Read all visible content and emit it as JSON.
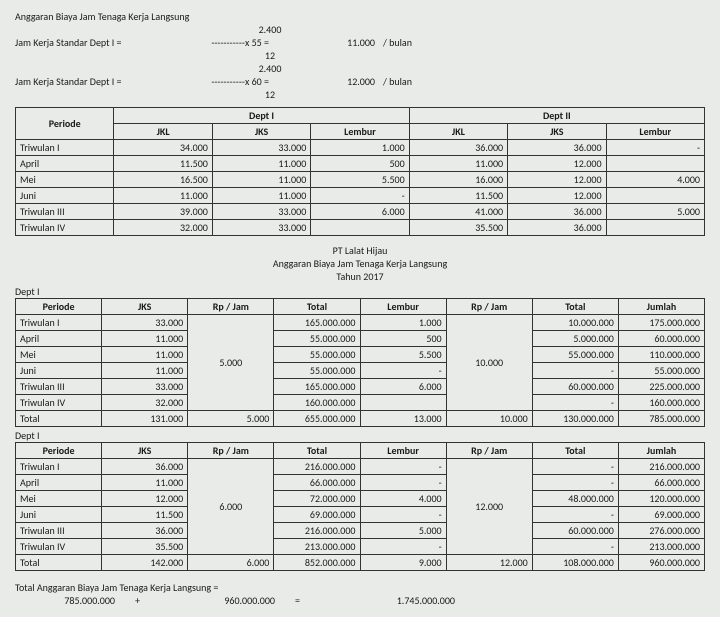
{
  "header": {
    "title": "Anggaran Biaya Jam Tenaga Kerja Langsung",
    "rows": [
      {
        "label": "Jam Kerja Standar Dept I  =",
        "num": "2.400",
        "den": "12",
        "mult": "x 55 =",
        "result": "11.000",
        "unit": "/ bulan"
      },
      {
        "label": "Jam Kerja Standar Dept I  =",
        "num": "2.400",
        "den": "12",
        "mult": "x 60 =",
        "result": "12.000",
        "unit": "/ bulan"
      }
    ],
    "dashes": "-----------"
  },
  "table1": {
    "periodeHeader": "Periode",
    "dept1": "Dept I",
    "dept2": "Dept II",
    "cols": [
      "JKL",
      "JKS",
      "Lembur",
      "JKL",
      "JKS",
      "Lembur"
    ],
    "rows": [
      {
        "p": "Triwulan I",
        "v": [
          "34.000",
          "33.000",
          "1.000",
          "36.000",
          "36.000",
          "-"
        ]
      },
      {
        "p": "April",
        "v": [
          "11.500",
          "11.000",
          "500",
          "11.000",
          "12.000",
          ""
        ]
      },
      {
        "p": "Mei",
        "v": [
          "16.500",
          "11.000",
          "5.500",
          "16.000",
          "12.000",
          "4.000"
        ]
      },
      {
        "p": "Juni",
        "v": [
          "11.000",
          "11.000",
          "-",
          "11.500",
          "12.000",
          ""
        ]
      },
      {
        "p": "Triwulan III",
        "v": [
          "39.000",
          "33.000",
          "6.000",
          "41.000",
          "36.000",
          "5.000"
        ]
      },
      {
        "p": "Triwulan IV",
        "v": [
          "32.000",
          "33.000",
          "",
          "35.500",
          "36.000",
          ""
        ]
      }
    ]
  },
  "midTitle": {
    "l1": "PT Lalat Hijau",
    "l2": "Anggaran Biaya Jam Tenaga Kerja Langsung",
    "l3": "Tahun 2017"
  },
  "table2": {
    "dept": "Dept I",
    "cols": [
      "Periode",
      "JKS",
      "Rp / Jam",
      "Total",
      "Lembur",
      "Rp / Jam",
      "Total",
      "Jumlah"
    ],
    "rate1": "5.000",
    "rate2": "10.000",
    "rows": [
      {
        "p": "Triwulan I",
        "jks": "33.000",
        "tot": "165.000.000",
        "lem": "1.000",
        "tot2": "10.000.000",
        "jml": "175.000.000"
      },
      {
        "p": "April",
        "jks": "11.000",
        "tot": "55.000.000",
        "lem": "500",
        "tot2": "5.000.000",
        "jml": "60.000.000"
      },
      {
        "p": "Mei",
        "jks": "11.000",
        "tot": "55.000.000",
        "lem": "5.500",
        "tot2": "55.000.000",
        "jml": "110.000.000"
      },
      {
        "p": "Juni",
        "jks": "11.000",
        "tot": "55.000.000",
        "lem": "-",
        "tot2": "-",
        "jml": "55.000.000"
      },
      {
        "p": "Triwulan III",
        "jks": "33.000",
        "tot": "165.000.000",
        "lem": "6.000",
        "tot2": "60.000.000",
        "jml": "225.000.000"
      },
      {
        "p": "Triwulan IV",
        "jks": "32.000",
        "tot": "160.000.000",
        "lem": "",
        "tot2": "-",
        "jml": "160.000.000"
      }
    ],
    "total": {
      "p": "Total",
      "jks": "131.000",
      "rate": "5.000",
      "tot": "655.000.000",
      "lem": "13.000",
      "rate2": "10.000",
      "tot2": "130.000.000",
      "jml": "785.000.000"
    }
  },
  "table3": {
    "dept": "Dept I",
    "cols": [
      "Periode",
      "JKS",
      "Rp / Jam",
      "Total",
      "Lembur",
      "Rp / Jam",
      "Total",
      "Jumlah"
    ],
    "rate1": "6.000",
    "rate2": "12.000",
    "rows": [
      {
        "p": "Triwulan I",
        "jks": "36.000",
        "tot": "216.000.000",
        "lem": "-",
        "tot2": "-",
        "jml": "216.000.000"
      },
      {
        "p": "April",
        "jks": "11.000",
        "tot": "66.000.000",
        "lem": "-",
        "tot2": "-",
        "jml": "66.000.000"
      },
      {
        "p": "Mei",
        "jks": "12.000",
        "tot": "72.000.000",
        "lem": "4.000",
        "tot2": "48.000.000",
        "jml": "120.000.000"
      },
      {
        "p": "Juni",
        "jks": "11.500",
        "tot": "69.000.000",
        "lem": "-",
        "tot2": "-",
        "jml": "69.000.000"
      },
      {
        "p": "Triwulan III",
        "jks": "36.000",
        "tot": "216.000.000",
        "lem": "5.000",
        "tot2": "60.000.000",
        "jml": "276.000.000"
      },
      {
        "p": "Triwulan IV",
        "jks": "35.500",
        "tot": "213.000.000",
        "lem": "-",
        "tot2": "-",
        "jml": "213.000.000"
      }
    ],
    "total": {
      "p": "Total",
      "jks": "142.000",
      "rate": "6.000",
      "tot": "852.000.000",
      "lem": "9.000",
      "rate2": "12.000",
      "tot2": "108.000.000",
      "jml": "960.000.000"
    }
  },
  "footer": {
    "label": "Total Anggaran Biaya Jam Tenaga Kerja Langsung =",
    "a": "785.000.000",
    "plus": "+",
    "b": "960.000.000",
    "eq": "=",
    "sum": "1.745.000.000"
  }
}
